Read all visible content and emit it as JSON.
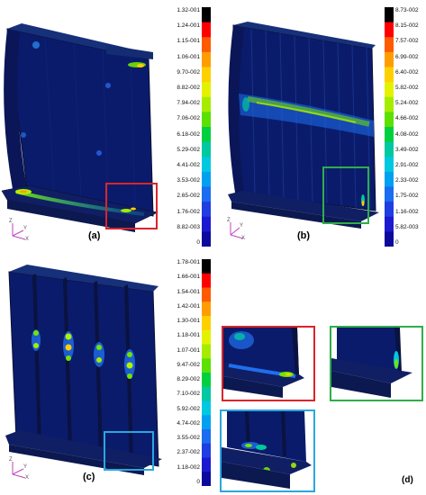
{
  "panels": {
    "a": {
      "label": "(a)"
    },
    "b": {
      "label": "(b)"
    },
    "c": {
      "label": "(c)"
    },
    "d": {
      "label": "(d)"
    }
  },
  "axis_triad": {
    "z": "Z",
    "y": "Y",
    "x": "X"
  },
  "colorbar_a": [
    "1.32-001",
    "1.24-001",
    "1.15-001",
    "1.06-001",
    "9.70-002",
    "8.82-002",
    "7.94-002",
    "7.06-002",
    "6.18-002",
    "5.29-002",
    "4.41-002",
    "3.53-002",
    "2.65-002",
    "1.76-002",
    "8.82-003",
    "0"
  ],
  "colorbar_b": [
    "8.73-002",
    "8.15-002",
    "7.57-002",
    "6.99-002",
    "6.40-002",
    "5.82-002",
    "5.24-002",
    "4.66-002",
    "4.08-002",
    "3.49-002",
    "2.91-002",
    "2.33-002",
    "1.75-002",
    "1.16-002",
    "5.82-003",
    "0"
  ],
  "colorbar_c": [
    "1.78-001",
    "1.66-001",
    "1.54-001",
    "1.42-001",
    "1.30-001",
    "1.18-001",
    "1.07-001",
    "9.47-002",
    "8.29-002",
    "7.10-002",
    "5.92-002",
    "4.74-002",
    "3.55-002",
    "2.37-002",
    "1.18-002",
    "0"
  ],
  "colors": {
    "scale": [
      "#000000",
      "#ff0000",
      "#ff5a00",
      "#ff9d00",
      "#ffd000",
      "#e4f200",
      "#a6ec00",
      "#5ce000",
      "#00d040",
      "#00c8a0",
      "#00c8e0",
      "#00a0f0",
      "#1a6cf0",
      "#1f3de0",
      "#1c1ad0",
      "#0c0a9c"
    ],
    "highlight_red": "#d9252a",
    "highlight_green": "#2fad4b",
    "highlight_blue": "#2aa6df",
    "mesh_base": "#0d1a5c"
  }
}
